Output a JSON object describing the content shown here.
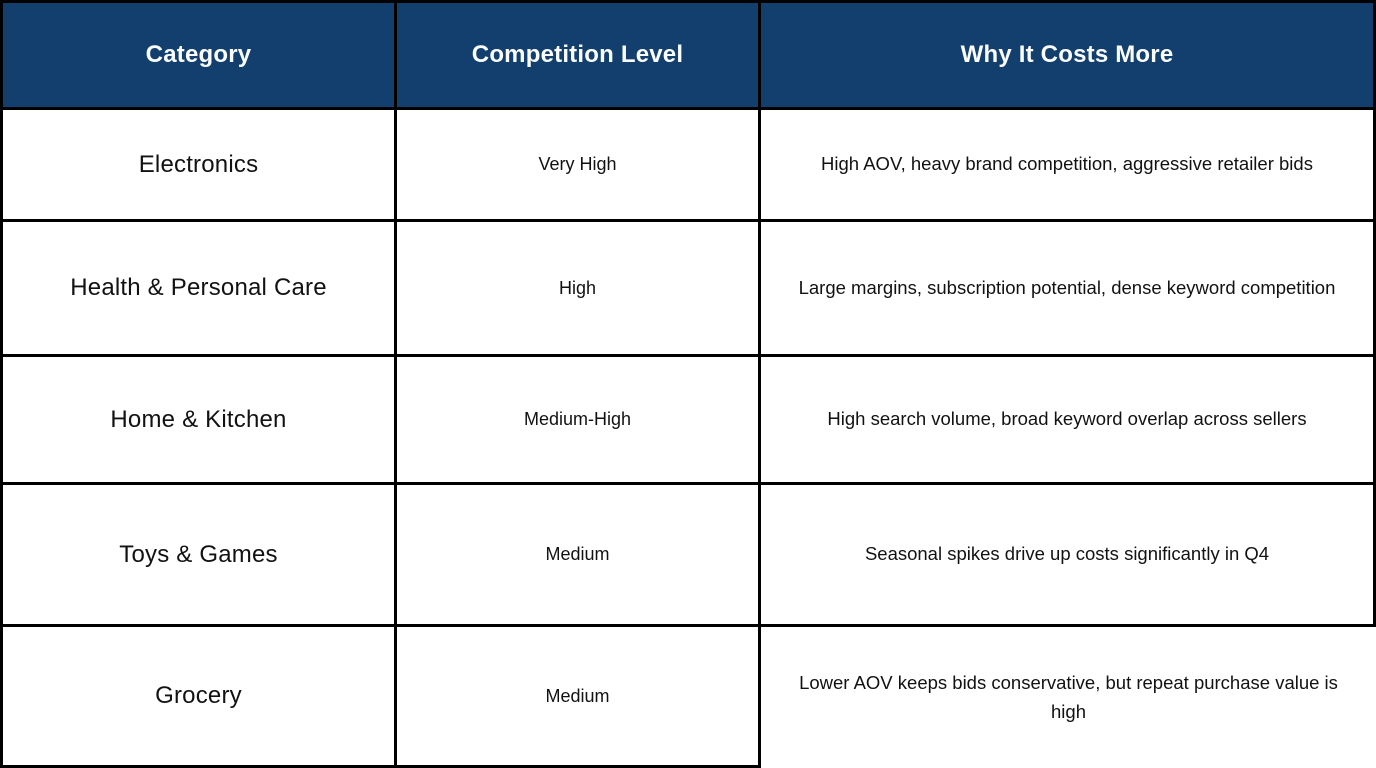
{
  "table": {
    "title_semantic": "amazon-category-ad-competition-table",
    "columns": [
      {
        "label": "Category"
      },
      {
        "label": "Competition Level"
      },
      {
        "label": "Why It Costs More"
      }
    ],
    "rows": [
      {
        "category": "Electronics",
        "competition_level": "Very High",
        "why_it_costs_more": "High AOV, heavy brand competition, aggressive retailer bids"
      },
      {
        "category": "Health & Personal Care",
        "competition_level": "High",
        "why_it_costs_more": "Large margins, subscription potential, dense keyword competition"
      },
      {
        "category": "Home & Kitchen",
        "competition_level": "Medium-High",
        "why_it_costs_more": "High search volume, broad keyword overlap across sellers"
      },
      {
        "category": "Toys & Games",
        "competition_level": "Medium",
        "why_it_costs_more": "Seasonal spikes drive up costs significantly in Q4"
      },
      {
        "category": "Grocery",
        "competition_level": "Medium",
        "why_it_costs_more": "Lower AOV keeps bids conservative, but repeat purchase value is high"
      }
    ]
  },
  "colors": {
    "header_background": "#123F6D",
    "header_text": "#FAFCFD",
    "border": "#000000",
    "body_text": "#121212",
    "row_background": "#FFFFFF"
  }
}
